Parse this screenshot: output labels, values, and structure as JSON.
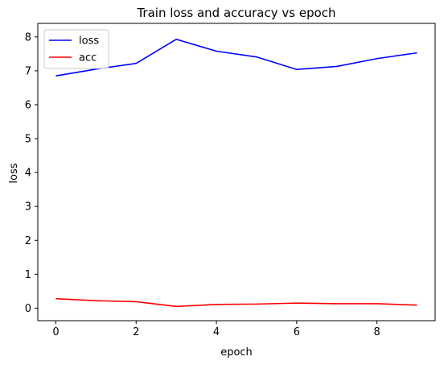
{
  "chart_data": {
    "type": "line",
    "title": "Train loss and accuracy vs epoch",
    "xlabel": "epoch",
    "ylabel": "loss",
    "x": [
      0,
      1,
      2,
      3,
      4,
      5,
      6,
      7,
      8,
      9
    ],
    "xlim": [
      -0.45,
      9.45
    ],
    "ylim": [
      -0.37,
      8.4
    ],
    "xticks": [
      0,
      2,
      4,
      6,
      8
    ],
    "yticks": [
      0,
      1,
      2,
      3,
      4,
      5,
      6,
      7,
      8
    ],
    "grid": false,
    "legend_position": "top-left",
    "series": [
      {
        "name": "loss",
        "color": "#0000ff",
        "values": [
          6.85,
          7.05,
          7.22,
          7.93,
          7.58,
          7.41,
          7.04,
          7.13,
          7.36,
          7.53
        ]
      },
      {
        "name": "acc",
        "color": "#ff0000",
        "values": [
          0.28,
          0.22,
          0.19,
          0.05,
          0.11,
          0.12,
          0.15,
          0.13,
          0.13,
          0.09
        ]
      }
    ]
  }
}
